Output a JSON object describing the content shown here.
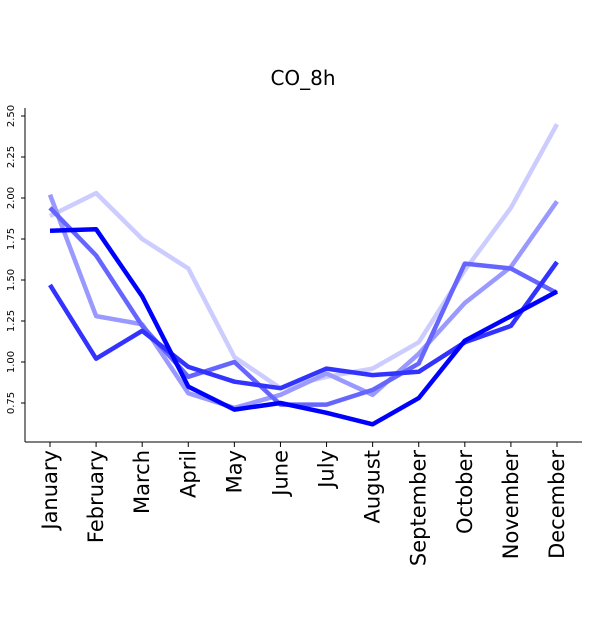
{
  "chart_data": {
    "type": "line",
    "title": "CO_8h",
    "xlabel": "",
    "ylabel": "",
    "categories": [
      "January",
      "February",
      "March",
      "April",
      "May",
      "June",
      "July",
      "August",
      "September",
      "October",
      "November",
      "December"
    ],
    "yticks": [
      "0.75",
      "1.00",
      "1.25",
      "1.50",
      "1.75",
      "2.00",
      "2.25",
      "2.50"
    ],
    "ylim": [
      0.55,
      2.55
    ],
    "grid": false,
    "legend": "none",
    "series": [
      {
        "color": "#ccccff",
        "values": [
          1.89,
          2.03,
          1.75,
          1.57,
          1.03,
          0.84,
          0.91,
          0.96,
          1.12,
          1.56,
          1.94,
          2.45
        ]
      },
      {
        "color": "#9999ff",
        "values": [
          2.02,
          1.28,
          1.23,
          0.81,
          0.72,
          0.8,
          0.93,
          0.8,
          1.05,
          1.36,
          1.58,
          1.98
        ]
      },
      {
        "color": "#6666ff",
        "values": [
          1.94,
          1.65,
          1.22,
          0.91,
          1.0,
          0.74,
          0.74,
          0.83,
          0.99,
          1.6,
          1.57,
          1.42
        ]
      },
      {
        "color": "#3333ff",
        "values": [
          1.47,
          1.02,
          1.19,
          0.97,
          0.88,
          0.84,
          0.96,
          0.92,
          0.94,
          1.12,
          1.22,
          1.61
        ]
      },
      {
        "color": "#0000ff",
        "values": [
          1.8,
          1.81,
          1.4,
          0.85,
          0.71,
          0.75,
          0.69,
          0.62,
          0.78,
          1.13,
          1.28,
          1.43
        ]
      }
    ]
  }
}
